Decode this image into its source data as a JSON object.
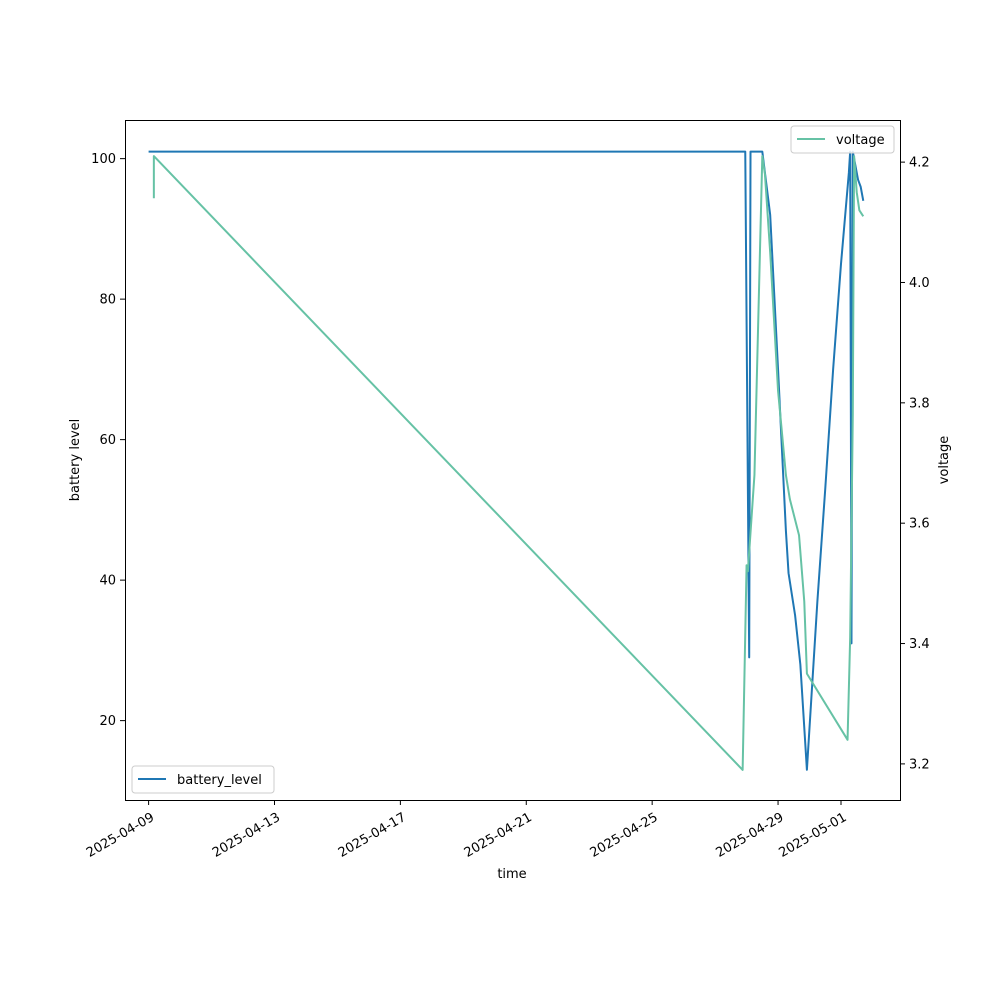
{
  "chart_data": {
    "type": "line",
    "xlabel": "time",
    "ylabel_left": "battery level",
    "ylabel_right": "voltage",
    "x_range": [
      "2025-04-08T06:00:00",
      "2025-05-02T21:00:00"
    ],
    "ylim_left": [
      8.7,
      105.5
    ],
    "ylim_right": [
      3.14,
      4.27
    ],
    "x_ticks": [
      "2025-04-09",
      "2025-04-13",
      "2025-04-17",
      "2025-04-21",
      "2025-04-25",
      "2025-04-29",
      "2025-05-01"
    ],
    "y_ticks_left": [
      20,
      40,
      60,
      80,
      100
    ],
    "y_ticks_right": [
      "3.2",
      "3.4",
      "3.6",
      "3.8",
      "4.0",
      "4.2"
    ],
    "legend_left": {
      "label": "battery_level",
      "position": "lower-left",
      "color": "#1f77b4"
    },
    "legend_right": {
      "label": "voltage",
      "position": "upper-right",
      "color": "#66c2a5"
    },
    "series": [
      {
        "name": "battery_level",
        "axis": "left",
        "color": "#1f77b4",
        "points": [
          [
            "2025-04-09T00:00:00",
            101
          ],
          [
            "2025-04-27T22:00:00",
            101
          ],
          [
            "2025-04-27T23:00:00",
            101
          ],
          [
            "2025-04-28T02:00:00",
            29
          ],
          [
            "2025-04-28T03:00:00",
            101
          ],
          [
            "2025-04-28T12:00:00",
            101
          ],
          [
            "2025-04-28T18:00:00",
            92
          ],
          [
            "2025-04-28T21:00:00",
            81
          ],
          [
            "2025-04-29T00:00:00",
            70
          ],
          [
            "2025-04-29T06:00:00",
            47
          ],
          [
            "2025-04-29T08:00:00",
            41
          ],
          [
            "2025-04-29T13:00:00",
            35
          ],
          [
            "2025-04-29T17:00:00",
            28
          ],
          [
            "2025-04-29T22:00:00",
            13
          ],
          [
            "2025-04-30T02:00:00",
            25
          ],
          [
            "2025-04-30T06:00:00",
            37
          ],
          [
            "2025-04-30T12:00:00",
            53
          ],
          [
            "2025-04-30T18:00:00",
            70
          ],
          [
            "2025-05-01T00:00:00",
            85
          ],
          [
            "2025-05-01T06:00:00",
            98
          ],
          [
            "2025-05-01T07:00:00",
            101
          ],
          [
            "2025-05-01T08:00:00",
            31
          ],
          [
            "2025-05-01T09:00:00",
            101
          ],
          [
            "2025-05-01T13:00:00",
            97
          ],
          [
            "2025-05-01T15:00:00",
            96
          ],
          [
            "2025-05-01T17:00:00",
            94
          ]
        ]
      },
      {
        "name": "voltage",
        "axis": "right",
        "color": "#66c2a5",
        "points": [
          [
            "2025-04-09T04:00:00",
            4.14
          ],
          [
            "2025-04-09T04:00:00",
            4.21
          ],
          [
            "2025-04-27T21:00:00",
            3.19
          ],
          [
            "2025-04-28T00:00:00",
            3.53
          ],
          [
            "2025-04-28T01:00:00",
            3.52
          ],
          [
            "2025-04-28T06:00:00",
            3.68
          ],
          [
            "2025-04-28T12:00:00",
            4.21
          ],
          [
            "2025-04-28T14:00:00",
            4.18
          ],
          [
            "2025-04-28T18:00:00",
            4.05
          ],
          [
            "2025-04-29T00:00:00",
            3.82
          ],
          [
            "2025-04-29T06:00:00",
            3.68
          ],
          [
            "2025-04-29T09:00:00",
            3.64
          ],
          [
            "2025-04-29T16:00:00",
            3.58
          ],
          [
            "2025-04-29T20:00:00",
            3.47
          ],
          [
            "2025-04-29T22:00:00",
            3.35
          ],
          [
            "2025-05-01T05:00:00",
            3.24
          ],
          [
            "2025-05-01T07:00:00",
            3.41
          ],
          [
            "2025-05-01T09:00:00",
            3.78
          ],
          [
            "2025-05-01T10:00:00",
            4.21
          ],
          [
            "2025-05-01T12:00:00",
            4.15
          ],
          [
            "2025-05-01T14:00:00",
            4.12
          ],
          [
            "2025-05-01T17:00:00",
            4.11
          ]
        ]
      }
    ]
  }
}
